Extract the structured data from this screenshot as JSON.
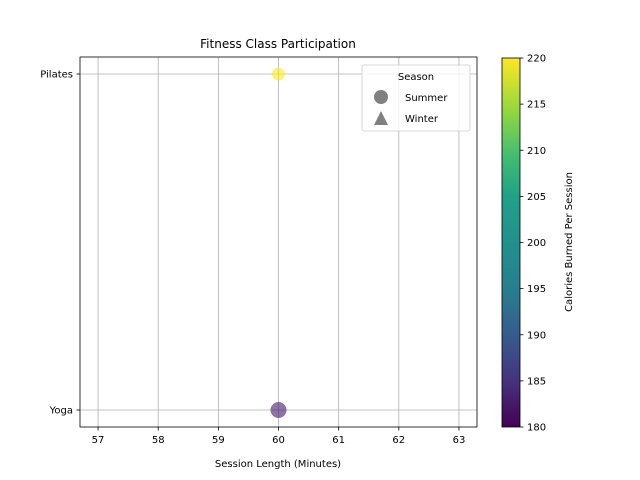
{
  "chart_data": {
    "type": "scatter",
    "title": "Fitness Class Participation",
    "xlabel": "Session Length (Minutes)",
    "ylabel": "",
    "xlim": [
      56.7,
      63.3
    ],
    "x_ticks": [
      57,
      58,
      59,
      60,
      61,
      62,
      63
    ],
    "y_categories": [
      "Yoga",
      "Pilates"
    ],
    "grid": true,
    "points": [
      {
        "x": 60,
        "y": "Pilates",
        "calories": 220,
        "season": "Summer",
        "size": "small"
      },
      {
        "x": 60,
        "y": "Yoga",
        "calories": 182,
        "season": "Summer",
        "size": "large"
      }
    ],
    "colorbar": {
      "label": "Calories Burned Per Session",
      "min": 180,
      "max": 220,
      "ticks": [
        180,
        185,
        190,
        195,
        200,
        205,
        210,
        215,
        220
      ],
      "colormap": "viridis"
    },
    "legend": {
      "title": "Season",
      "placement": "top-right",
      "entries": [
        {
          "label": "Summer",
          "marker": "circle"
        },
        {
          "label": "Winter",
          "marker": "triangle"
        }
      ]
    },
    "point_alpha": 0.6
  }
}
